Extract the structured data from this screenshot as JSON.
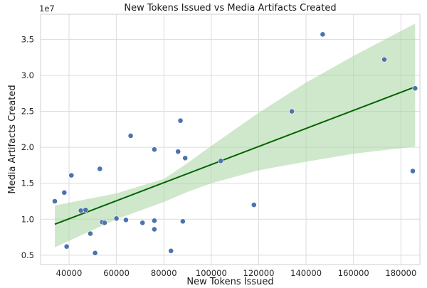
{
  "chart_data": {
    "type": "scatter",
    "title": "New Tokens Issued vs Media Artifacts Created",
    "xlabel": "New Tokens Issued",
    "ylabel": "Media Artifacts Created",
    "y_multiplier_label": "1e7",
    "xlim": [
      28000,
      188000
    ],
    "ylim": [
      0.37,
      3.85
    ],
    "x_ticks": [
      40000,
      60000,
      80000,
      100000,
      120000,
      140000,
      160000,
      180000
    ],
    "y_ticks": [
      0.5,
      1.0,
      1.5,
      2.0,
      2.5,
      3.0,
      3.5
    ],
    "grid": true,
    "points_color": "#4c72b0",
    "regression_color": "#006400",
    "ci_color": "#a8d5a2",
    "points": [
      {
        "x": 34000,
        "y": 1.25
      },
      {
        "x": 38000,
        "y": 1.37
      },
      {
        "x": 39000,
        "y": 0.62
      },
      {
        "x": 41000,
        "y": 1.61
      },
      {
        "x": 45000,
        "y": 1.12
      },
      {
        "x": 47000,
        "y": 1.13
      },
      {
        "x": 49000,
        "y": 0.8
      },
      {
        "x": 51000,
        "y": 0.53
      },
      {
        "x": 53000,
        "y": 1.7
      },
      {
        "x": 54000,
        "y": 0.96
      },
      {
        "x": 55000,
        "y": 0.95
      },
      {
        "x": 60000,
        "y": 1.01
      },
      {
        "x": 64000,
        "y": 0.99
      },
      {
        "x": 66000,
        "y": 2.16
      },
      {
        "x": 71000,
        "y": 0.95
      },
      {
        "x": 76000,
        "y": 0.98
      },
      {
        "x": 76000,
        "y": 0.86
      },
      {
        "x": 76000,
        "y": 1.97
      },
      {
        "x": 83000,
        "y": 0.56
      },
      {
        "x": 86000,
        "y": 1.94
      },
      {
        "x": 87000,
        "y": 2.37
      },
      {
        "x": 88000,
        "y": 0.97
      },
      {
        "x": 89000,
        "y": 1.85
      },
      {
        "x": 104000,
        "y": 1.81
      },
      {
        "x": 118000,
        "y": 1.2
      },
      {
        "x": 134000,
        "y": 2.5
      },
      {
        "x": 147000,
        "y": 3.57
      },
      {
        "x": 173000,
        "y": 3.22
      },
      {
        "x": 185000,
        "y": 1.67
      },
      {
        "x": 186000,
        "y": 2.82
      }
    ],
    "regression_line": {
      "x": [
        34000,
        186000
      ],
      "y": [
        0.93,
        2.84
      ]
    },
    "confidence_band": {
      "x": [
        34000,
        60000,
        80000,
        90000,
        100000,
        120000,
        140000,
        160000,
        186000
      ],
      "upper": [
        1.19,
        1.36,
        1.56,
        1.78,
        2.02,
        2.48,
        2.9,
        3.27,
        3.72
      ],
      "lower": [
        0.61,
        1.0,
        1.24,
        1.38,
        1.5,
        1.68,
        1.8,
        1.91,
        2.01
      ]
    }
  }
}
